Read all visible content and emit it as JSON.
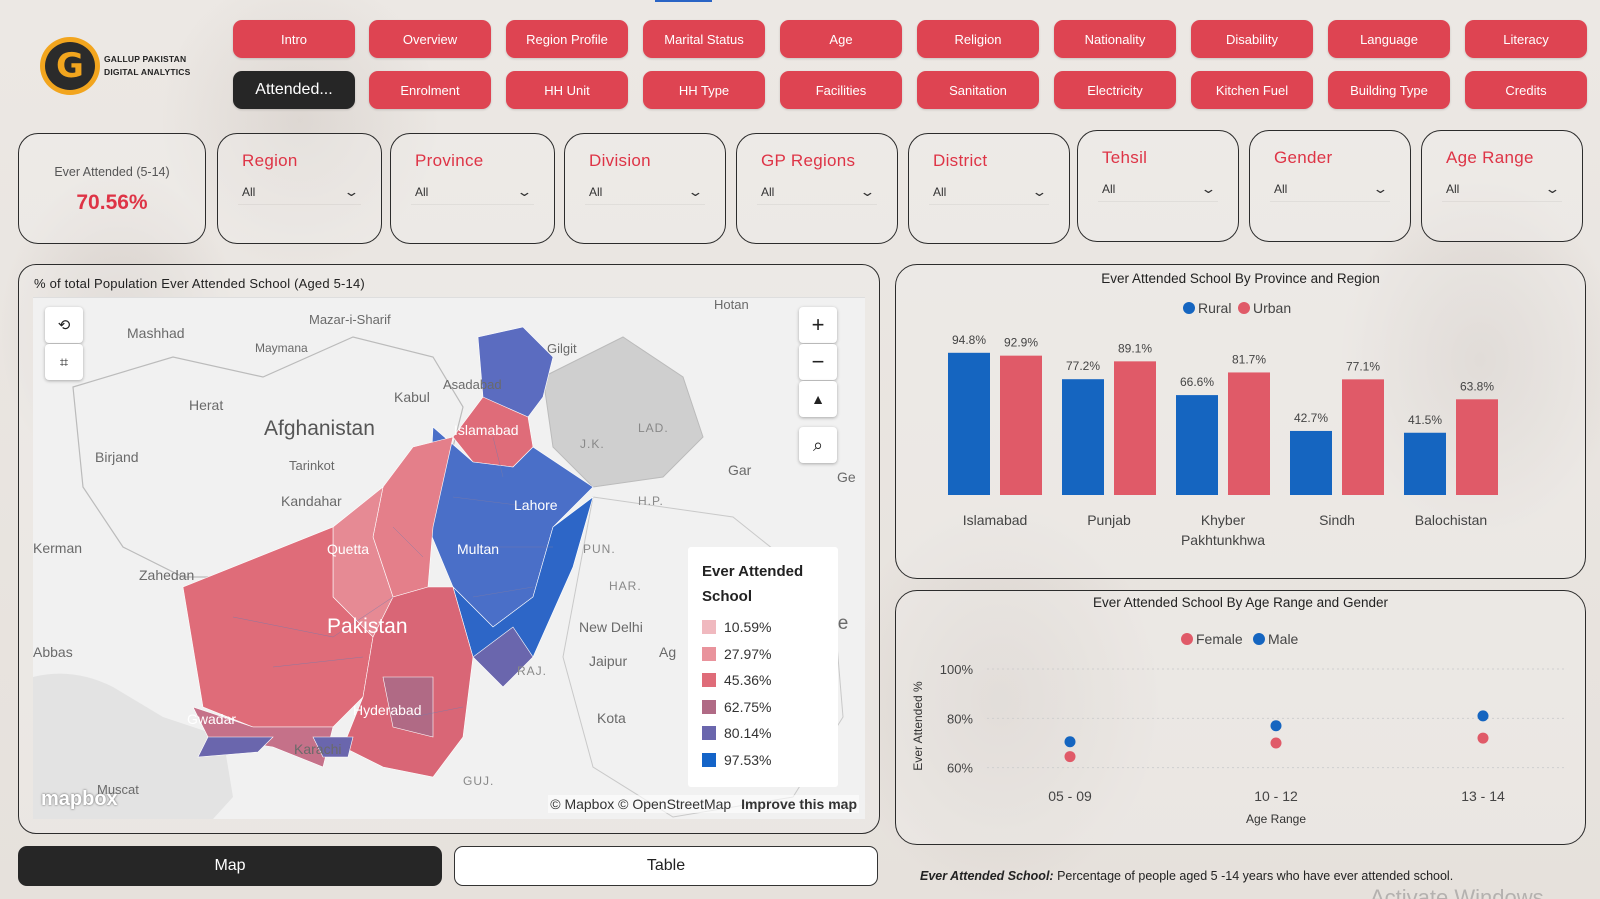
{
  "logo": {
    "line1": "GALLUP PAKISTAN",
    "line2": "DIGITAL ANALYTICS",
    "glyph": "G"
  },
  "nav": {
    "row1": [
      "Intro",
      "Overview",
      "Region Profile",
      "Marital Status",
      "Age",
      "Religion",
      "Nationality",
      "Disability",
      "Language",
      "Literacy"
    ],
    "row2": [
      "Attended...",
      "Enrolment",
      "HH Unit",
      "HH Type",
      "Facilities",
      "Sanitation",
      "Electricity",
      "Kitchen Fuel",
      "Building Type",
      "Credits"
    ]
  },
  "kpi": {
    "label": "Ever Attended (5-14)",
    "value": "70.56%"
  },
  "slicers": [
    {
      "title": "Region",
      "value": "All"
    },
    {
      "title": "Province",
      "value": "All"
    },
    {
      "title": "Division",
      "value": "All"
    },
    {
      "title": "GP Regions",
      "value": "All"
    },
    {
      "title": "District",
      "value": "All"
    },
    {
      "title": "Tehsil",
      "value": "All"
    },
    {
      "title": "Gender",
      "value": "All"
    },
    {
      "title": "Age Range",
      "value": "All"
    }
  ],
  "map": {
    "title": "% of total Population Ever Attended School (Aged 5-14)",
    "labels": {
      "mashhad": "Mashhad",
      "mazar": "Mazar-i-Sharif",
      "maymana": "Maymana",
      "hotan": "Hotan",
      "gilgit": "Gilgit",
      "asadabad": "Asadabad",
      "kabul": "Kabul",
      "herat": "Herat",
      "afghanistan": "Afghanistan",
      "islamabad": "Islamabad",
      "lad": "LAD.",
      "jk": "J.K.",
      "birjand": "Birjand",
      "tarinkot": "Tarinkot",
      "gar": "Gar",
      "ge": "Ge",
      "kandahar": "Kandahar",
      "lahore": "Lahore",
      "hp": "H.P.",
      "kerman": "Kerman",
      "quetta": "Quetta",
      "multan": "Multan",
      "pun": "PUN.",
      "zahedan": "Zahedan",
      "har": "HAR.",
      "pakistan": "Pakistan",
      "newdelhi": "New Delhi",
      "ne": "Ne",
      "abbas": "Abbas",
      "jaipur": "Jaipur",
      "ag": "Ag",
      "raj": "RAJ.",
      "kota": "Kota",
      "gwadar": "Gwadar",
      "hyderabad": "Hyderabad",
      "karachi": "Karachi",
      "muscat": "Muscat",
      "guj": "GUJ."
    },
    "legend": {
      "title_line1": "Ever Attended",
      "title_line2": "School",
      "items": [
        {
          "label": "10.59%",
          "color": "#f0b9bf"
        },
        {
          "label": "27.97%",
          "color": "#e9939c"
        },
        {
          "label": "45.36%",
          "color": "#df6c79"
        },
        {
          "label": "62.75%",
          "color": "#b06a85"
        },
        {
          "label": "80.14%",
          "color": "#6a66ad"
        },
        {
          "label": "97.53%",
          "color": "#1464c8"
        }
      ]
    },
    "mapbox": "mapbox",
    "attribution": "© Mapbox © OpenStreetMap",
    "improve": "Improve this map",
    "controls": {
      "zoom_in": "+",
      "zoom_out": "−",
      "compass": "▲"
    }
  },
  "toggles": {
    "map": "Map",
    "table": "Table"
  },
  "colors": {
    "rural": "#1565c0",
    "urban": "#e05a68",
    "female": "#e05a68",
    "male": "#1565c0",
    "accent": "#de4452"
  },
  "chart_data": [
    {
      "type": "bar",
      "title": "Ever Attended School By Province and Region",
      "categories": [
        "Islamabad",
        "Punjab",
        "Khyber Pakhtunkhwa",
        "Sindh",
        "Balochistan"
      ],
      "series": [
        {
          "name": "Rural",
          "values": [
            94.8,
            77.2,
            66.6,
            42.7,
            41.5
          ]
        },
        {
          "name": "Urban",
          "values": [
            92.9,
            89.1,
            81.7,
            77.1,
            63.8
          ]
        }
      ],
      "data_labels": [
        [
          "94.8%",
          "77.2%",
          "66.6%",
          "42.7%",
          "41.5%"
        ],
        [
          "92.9%",
          "89.1%",
          "81.7%",
          "77.1%",
          "63.8%"
        ]
      ],
      "legend_position": "top-center",
      "ylim": [
        0,
        100
      ]
    },
    {
      "type": "scatter",
      "title": "Ever Attended School By Age Range and Gender",
      "categories": [
        "05 - 09",
        "10 - 12",
        "13 - 14"
      ],
      "series": [
        {
          "name": "Female",
          "values": [
            64.5,
            70.0,
            72.0
          ]
        },
        {
          "name": "Male",
          "values": [
            70.5,
            77.0,
            81.0
          ]
        }
      ],
      "xlabel": "Age Range",
      "ylabel": "Ever Attended %",
      "yticks": [
        "100%",
        "80%",
        "60%"
      ],
      "ylim": [
        55,
        100
      ],
      "grid": true,
      "legend_position": "top-center"
    }
  ],
  "footnote": {
    "term": "Ever Attended School:",
    "text": " Percentage of people aged 5 -14 years  who have ever attended school."
  },
  "watermark": "Activate Windows"
}
